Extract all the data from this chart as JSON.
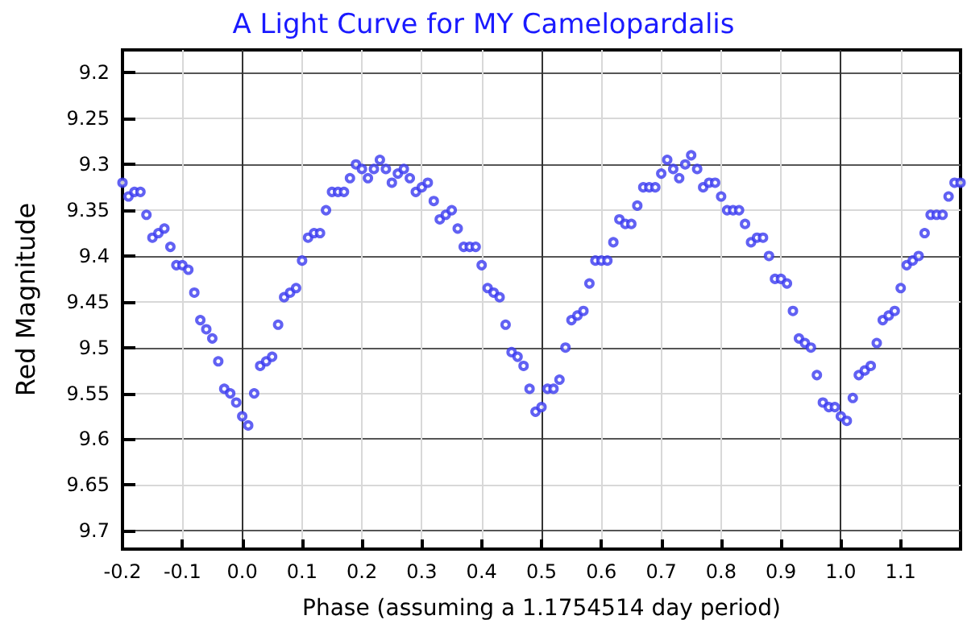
{
  "chart_data": {
    "type": "scatter",
    "title": "A Light Curve for MY Camelopardalis",
    "xlabel": "Phase (assuming a 1.1754514 day period)",
    "ylabel": "Red Magnitude",
    "x": [
      -0.2,
      -0.19,
      -0.18,
      -0.17,
      -0.16,
      -0.15,
      -0.14,
      -0.13,
      -0.12,
      -0.11,
      -0.1,
      -0.09,
      -0.08,
      -0.07,
      -0.06,
      -0.05,
      -0.04,
      -0.03,
      -0.02,
      -0.01,
      0,
      0.01,
      0.02,
      0.03,
      0.04,
      0.05,
      0.06,
      0.07,
      0.08,
      0.09,
      0.1,
      0.11,
      0.12,
      0.13,
      0.14,
      0.15,
      0.16,
      0.17,
      0.18,
      0.19,
      0.2,
      0.21,
      0.22,
      0.23,
      0.24,
      0.25,
      0.26,
      0.27,
      0.28,
      0.29,
      0.3,
      0.31,
      0.32,
      0.33,
      0.34,
      0.35,
      0.36,
      0.37,
      0.38,
      0.39,
      0.4,
      0.41,
      0.42,
      0.43,
      0.44,
      0.45,
      0.46,
      0.47,
      0.48,
      0.49,
      0.5,
      0.51,
      0.52,
      0.53,
      0.54,
      0.55,
      0.56,
      0.57,
      0.58,
      0.59,
      0.6,
      0.61,
      0.62,
      0.63,
      0.64,
      0.65,
      0.66,
      0.67,
      0.68,
      0.69,
      0.7,
      0.71,
      0.72,
      0.73,
      0.74,
      0.75,
      0.76,
      0.77,
      0.78,
      0.79,
      0.8,
      0.81,
      0.82,
      0.83,
      0.84,
      0.85,
      0.86,
      0.87,
      0.88,
      0.89,
      0.9,
      0.91,
      0.92,
      0.93,
      0.94,
      0.95,
      0.96,
      0.97,
      0.98,
      0.99,
      1,
      1.01,
      1.02,
      1.03,
      1.04,
      1.05,
      1.06,
      1.07,
      1.08,
      1.09,
      1.1,
      1.11,
      1.12,
      1.13,
      1.14,
      1.15,
      1.16,
      1.17,
      1.18,
      1.19,
      1.2
    ],
    "series": [
      {
        "color": "#3a3af0",
        "values": [
          9.32,
          9.335,
          9.33,
          9.33,
          9.355,
          9.38,
          9.375,
          9.37,
          9.39,
          9.41,
          9.41,
          9.415,
          9.44,
          9.47,
          9.48,
          9.49,
          9.515,
          9.545,
          9.55,
          9.56,
          9.575,
          9.585,
          9.55,
          9.52,
          9.515,
          9.51,
          9.475,
          9.445,
          9.44,
          9.435,
          9.405,
          9.38,
          9.375,
          9.375,
          9.35,
          9.33,
          9.33,
          9.33,
          9.315,
          9.3,
          9.305,
          9.315,
          9.305,
          9.295,
          9.305,
          9.32,
          9.31,
          9.305,
          9.315,
          9.33,
          9.325,
          9.32,
          9.34,
          9.36,
          9.355,
          9.35,
          9.37,
          9.39,
          9.39,
          9.39,
          9.41,
          9.435,
          9.44,
          9.445,
          9.475,
          9.505,
          9.51,
          9.52,
          9.545,
          9.57,
          9.565,
          9.545,
          9.545,
          9.535,
          9.5,
          9.47,
          9.465,
          9.46,
          9.43,
          9.405,
          9.405,
          9.405,
          9.385,
          9.36,
          9.365,
          9.365,
          9.345,
          9.325,
          9.325,
          9.325,
          9.31,
          9.295,
          9.305,
          9.315,
          9.3,
          9.29,
          9.305,
          9.325,
          9.32,
          9.32,
          9.335,
          9.35,
          9.35,
          9.35,
          9.365,
          9.385,
          9.38,
          9.38,
          9.4,
          9.425,
          9.425,
          9.43,
          9.46,
          9.49,
          9.495,
          9.5,
          9.53,
          9.56,
          9.565,
          9.565,
          9.575,
          9.58,
          9.555,
          9.53,
          9.525,
          9.52,
          9.495,
          9.47,
          9.465,
          9.46,
          9.435,
          9.41,
          9.405,
          9.4,
          9.375,
          9.355,
          9.355,
          9.355,
          9.335,
          9.32,
          9.32
        ]
      }
    ],
    "xlim": [
      -0.2,
      1.2
    ],
    "xticks": [
      -0.2,
      -0.1,
      {
        "value": 0,
        "label": "0.0"
      },
      0.1,
      0.2,
      0.3,
      0.4,
      0.5,
      0.6,
      0.7,
      0.8,
      0.9,
      {
        "value": 1,
        "label": "1.0"
      },
      1.1
    ],
    "ylim": [
      9.72,
      9.175
    ],
    "yticks": [
      9.2,
      9.25,
      9.3,
      9.35,
      9.4,
      9.45,
      9.5,
      9.55,
      9.6,
      9.65,
      9.7
    ],
    "grid": true,
    "marker": "circle"
  }
}
